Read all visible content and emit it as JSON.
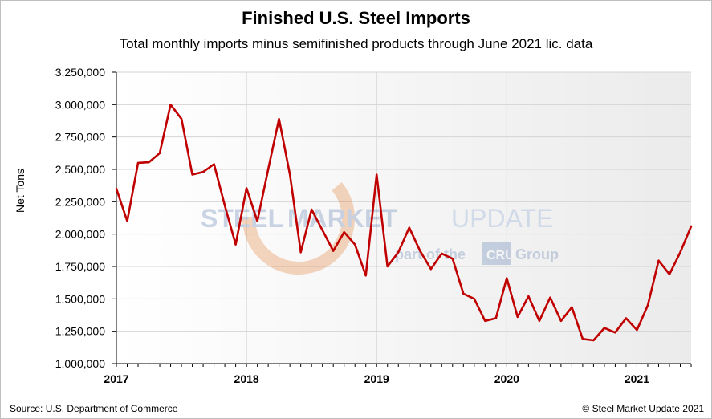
{
  "chart_data": {
    "type": "line",
    "title": "Finished U.S. Steel Imports",
    "subtitle": "Total monthly imports minus semifinished products through June 2021 lic. data",
    "xlabel": "",
    "ylabel": "Net Tons",
    "ylim": [
      1000000,
      3250000
    ],
    "yticks": [
      1000000,
      1250000,
      1500000,
      1750000,
      2000000,
      2250000,
      2500000,
      2750000,
      3000000,
      3250000
    ],
    "ytick_labels": [
      "1,000,000",
      "1,250,000",
      "1,500,000",
      "1,750,000",
      "2,000,000",
      "2,250,000",
      "2,500,000",
      "2,750,000",
      "3,000,000",
      "3,250,000"
    ],
    "xtick_labels": [
      "2017",
      "2018",
      "2019",
      "2020",
      "2021"
    ],
    "start": "2017-01",
    "end": "2021-06",
    "grid": true,
    "series": [
      {
        "color": "#c00000",
        "x": [
          "2017-01",
          "2017-02",
          "2017-03",
          "2017-04",
          "2017-05",
          "2017-06",
          "2017-07",
          "2017-08",
          "2017-09",
          "2017-10",
          "2017-11",
          "2017-12",
          "2018-01",
          "2018-02",
          "2018-03",
          "2018-04",
          "2018-05",
          "2018-06",
          "2018-07",
          "2018-08",
          "2018-09",
          "2018-10",
          "2018-11",
          "2018-12",
          "2019-01",
          "2019-02",
          "2019-03",
          "2019-04",
          "2019-05",
          "2019-06",
          "2019-07",
          "2019-08",
          "2019-09",
          "2019-10",
          "2019-11",
          "2019-12",
          "2020-01",
          "2020-02",
          "2020-03",
          "2020-04",
          "2020-05",
          "2020-06",
          "2020-07",
          "2020-08",
          "2020-09",
          "2020-10",
          "2020-11",
          "2020-12",
          "2021-01",
          "2021-02",
          "2021-03",
          "2021-04",
          "2021-05",
          "2021-06"
        ],
        "values": [
          2350000,
          2100000,
          2550000,
          2555000,
          2625000,
          3000000,
          2890000,
          2460000,
          2480000,
          2540000,
          2220000,
          1920000,
          2355000,
          2100000,
          2500000,
          2890000,
          2460000,
          1860000,
          2190000,
          2030000,
          1870000,
          2015000,
          1920000,
          1680000,
          2460000,
          1750000,
          1860000,
          2050000,
          1870000,
          1730000,
          1850000,
          1810000,
          1540000,
          1500000,
          1330000,
          1350000,
          1660000,
          1360000,
          1520000,
          1330000,
          1510000,
          1330000,
          1435000,
          1190000,
          1180000,
          1275000,
          1240000,
          1350000,
          1260000,
          1450000,
          1795000,
          1690000,
          1860000,
          2060000
        ]
      }
    ]
  },
  "watermark": {
    "brand_a": "STEEL",
    "brand_b": "MARKET",
    "brand_c": "UPDATE",
    "tagline_a": "part of the",
    "tagline_logo": "CRU",
    "tagline_b": "Group"
  },
  "footer": {
    "source": "Source: U.S. Department of Commerce",
    "copyright": "© Steel Market Update 2021"
  }
}
